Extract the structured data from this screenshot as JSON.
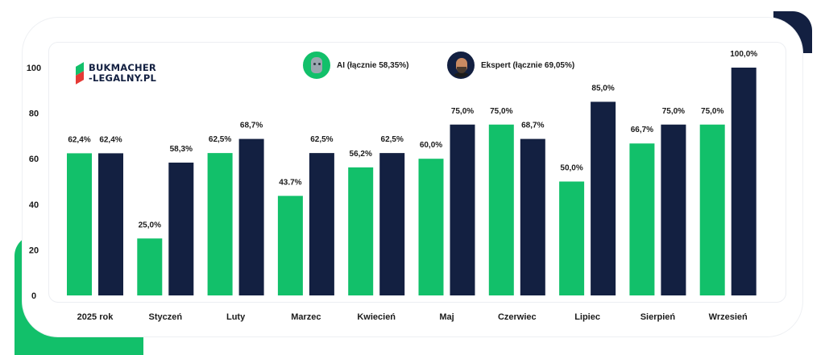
{
  "brand": {
    "line1": "BUKMACHER",
    "line2": "-LEGALNY.PL"
  },
  "legend": {
    "ai_label": "AI (łącznie 58,35%)",
    "expert_label": "Ekspert (łącznie 69,05%)"
  },
  "colors": {
    "ai": "#12c06a",
    "expert": "#132041",
    "accent_green": "#12c06a",
    "accent_navy": "#132041"
  },
  "icons": {
    "ai": "robot-avatar-icon",
    "expert": "expert-avatar-icon",
    "logo": "bukmacher-logo-icon"
  },
  "chart_data": {
    "type": "bar",
    "categories": [
      "2025 rok",
      "Styczeń",
      "Luty",
      "Marzec",
      "Kwiecień",
      "Maj",
      "Czerwiec",
      "Lipiec",
      "Sierpień",
      "Wrzesień"
    ],
    "series": [
      {
        "name": "AI (łącznie 58,35%)",
        "values": [
          62.4,
          25.0,
          62.5,
          43.7,
          56.2,
          60.0,
          75.0,
          50.0,
          66.7,
          75.0
        ],
        "labels": [
          "62,4%",
          "25,0%",
          "62,5%",
          "43.7%",
          "56,2%",
          "60,0%",
          "75,0%",
          "50,0%",
          "66,7%",
          "75,0%"
        ]
      },
      {
        "name": "Ekspert (łącznie 69,05%)",
        "values": [
          62.4,
          58.3,
          68.7,
          62.5,
          62.5,
          75.0,
          68.7,
          85.0,
          75.0,
          100.0
        ],
        "labels": [
          "62,4%",
          "58,3%",
          "68,7%",
          "62,5%",
          "62,5%",
          "75,0%",
          "68,7%",
          "85,0%",
          "75,0%",
          "100,0%"
        ]
      }
    ],
    "yticks": [
      "0",
      "20",
      "40",
      "60",
      "80",
      "100"
    ],
    "ylim": [
      0,
      100
    ],
    "grid": true,
    "legend_position": "top",
    "title": "",
    "xlabel": "",
    "ylabel": ""
  }
}
